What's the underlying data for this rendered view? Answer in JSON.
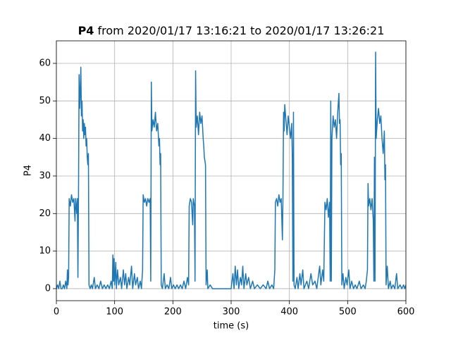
{
  "chart_data": {
    "type": "line",
    "title_bold": "P4",
    "title_rest": "from 2020/01/17 13:16:21 to 2020/01/17 13:26:21",
    "xlabel": "time (s)",
    "ylabel": "P4",
    "xlim": [
      0,
      600
    ],
    "ylim": [
      -3.2,
      66
    ],
    "xticks": [
      0,
      100,
      200,
      300,
      400,
      500,
      600
    ],
    "yticks": [
      0,
      10,
      20,
      30,
      40,
      50,
      60
    ],
    "grid": true,
    "x": [
      0,
      2,
      4,
      6,
      8,
      10,
      12,
      14,
      16,
      18,
      19,
      20,
      21,
      22,
      24,
      26,
      28,
      30,
      32,
      33,
      35,
      36,
      37,
      38,
      39,
      40,
      41,
      42,
      43,
      44,
      45,
      46,
      47,
      48,
      49,
      50,
      51,
      52,
      53,
      54,
      55,
      56,
      58,
      60,
      62,
      65,
      67,
      70,
      73,
      76,
      79,
      82,
      85,
      88,
      91,
      94,
      96,
      97,
      98,
      99,
      100,
      102,
      103,
      105,
      107,
      110,
      112,
      115,
      117,
      119,
      121,
      124,
      126,
      129,
      131,
      134,
      136,
      139,
      141,
      144,
      146,
      148,
      149,
      151,
      153,
      155,
      157,
      159,
      161,
      162,
      163,
      164,
      166,
      168,
      170,
      172,
      174,
      176,
      177,
      178,
      179,
      180,
      182,
      185,
      187,
      190,
      193,
      196,
      198,
      201,
      204,
      207,
      210,
      213,
      216,
      219,
      222,
      225,
      227,
      228,
      230,
      232,
      234,
      235,
      237,
      238,
      239,
      240,
      242,
      244,
      246,
      248,
      250,
      252,
      253,
      254,
      256,
      257,
      259,
      260,
      264,
      268,
      275,
      285,
      295,
      300,
      303,
      305,
      307,
      309,
      311,
      313,
      316,
      318,
      320,
      322,
      325,
      327,
      330,
      333,
      337,
      340,
      345,
      350,
      355,
      360,
      363,
      366,
      370,
      373,
      375,
      376,
      378,
      380,
      382,
      384,
      386,
      388,
      389,
      390,
      391,
      392,
      394,
      396,
      398,
      400,
      402,
      404,
      405,
      406,
      407,
      408,
      410,
      413,
      415,
      418,
      420,
      423,
      425,
      430,
      433,
      437,
      440,
      444,
      447,
      452,
      454,
      457,
      459,
      461,
      463,
      465,
      467,
      469,
      470,
      471,
      472,
      473,
      475,
      477,
      479,
      481,
      483,
      485,
      486,
      487,
      488,
      489,
      490,
      492,
      494,
      497,
      499,
      502,
      504,
      507,
      510,
      513,
      516,
      520,
      523,
      527,
      530,
      532,
      534,
      535,
      536,
      538,
      540,
      542,
      544,
      545,
      546,
      547,
      548,
      549,
      551,
      553,
      555,
      557,
      559,
      561,
      563,
      564,
      565,
      566,
      568,
      570,
      573,
      575,
      578,
      581,
      584,
      586,
      590,
      593,
      596,
      598,
      600
    ],
    "series": [
      {
        "name": "P4",
        "color": "#1f77b4",
        "values": [
          0,
          1,
          0,
          2,
          0,
          0,
          1,
          0,
          2,
          0,
          5,
          1,
          3,
          24,
          22,
          25,
          23,
          24,
          18,
          24,
          20,
          24,
          3,
          25,
          57,
          48,
          52,
          59,
          46,
          50,
          42,
          45,
          40,
          44,
          41,
          43,
          38,
          40,
          35,
          33,
          36,
          1,
          0,
          1,
          0,
          3,
          0,
          1,
          0,
          2,
          0,
          1,
          0,
          1,
          0,
          2,
          0,
          9,
          2,
          8,
          1,
          7,
          0,
          5,
          1,
          3,
          0,
          5,
          1,
          4,
          0,
          3,
          1,
          6,
          0,
          4,
          1,
          3,
          0,
          2,
          0,
          5,
          25,
          23,
          24,
          22,
          24,
          23,
          24,
          2,
          55,
          42,
          45,
          43,
          47,
          42,
          44,
          38,
          40,
          33,
          36,
          1,
          0,
          4,
          0,
          1,
          0,
          3,
          0,
          1,
          0,
          1,
          0,
          1,
          0,
          2,
          0,
          3,
          1,
          22,
          24,
          23,
          17,
          24,
          22,
          2,
          58,
          43,
          46,
          41,
          47,
          44,
          46,
          40,
          38,
          35,
          33,
          1,
          5,
          0,
          1,
          0,
          0,
          0,
          0,
          0,
          4,
          0,
          6,
          1,
          5,
          0,
          3,
          1,
          6,
          0,
          4,
          1,
          3,
          0,
          2,
          0,
          1,
          0,
          1,
          0,
          2,
          0,
          1,
          0,
          5,
          23,
          24,
          22,
          25,
          23,
          24,
          13,
          25,
          47,
          42,
          49,
          45,
          41,
          46,
          43,
          40,
          44,
          35,
          2,
          47,
          1,
          0,
          3,
          0,
          4,
          1,
          5,
          0,
          2,
          0,
          4,
          1,
          2,
          0,
          6,
          1,
          5,
          2,
          23,
          21,
          24,
          19,
          23,
          2,
          50,
          2,
          40,
          46,
          43,
          45,
          40,
          47,
          52,
          44,
          45,
          33,
          36,
          1,
          4,
          0,
          3,
          1,
          5,
          0,
          2,
          0,
          1,
          0,
          2,
          0,
          1,
          0,
          2,
          5,
          28,
          22,
          24,
          21,
          24,
          18,
          2,
          35,
          2,
          63,
          40,
          45,
          48,
          44,
          46,
          40,
          36,
          42,
          29,
          33,
          1,
          6,
          0,
          2,
          0,
          1,
          0,
          4,
          0,
          1,
          0,
          1,
          0,
          1
        ]
      }
    ]
  }
}
